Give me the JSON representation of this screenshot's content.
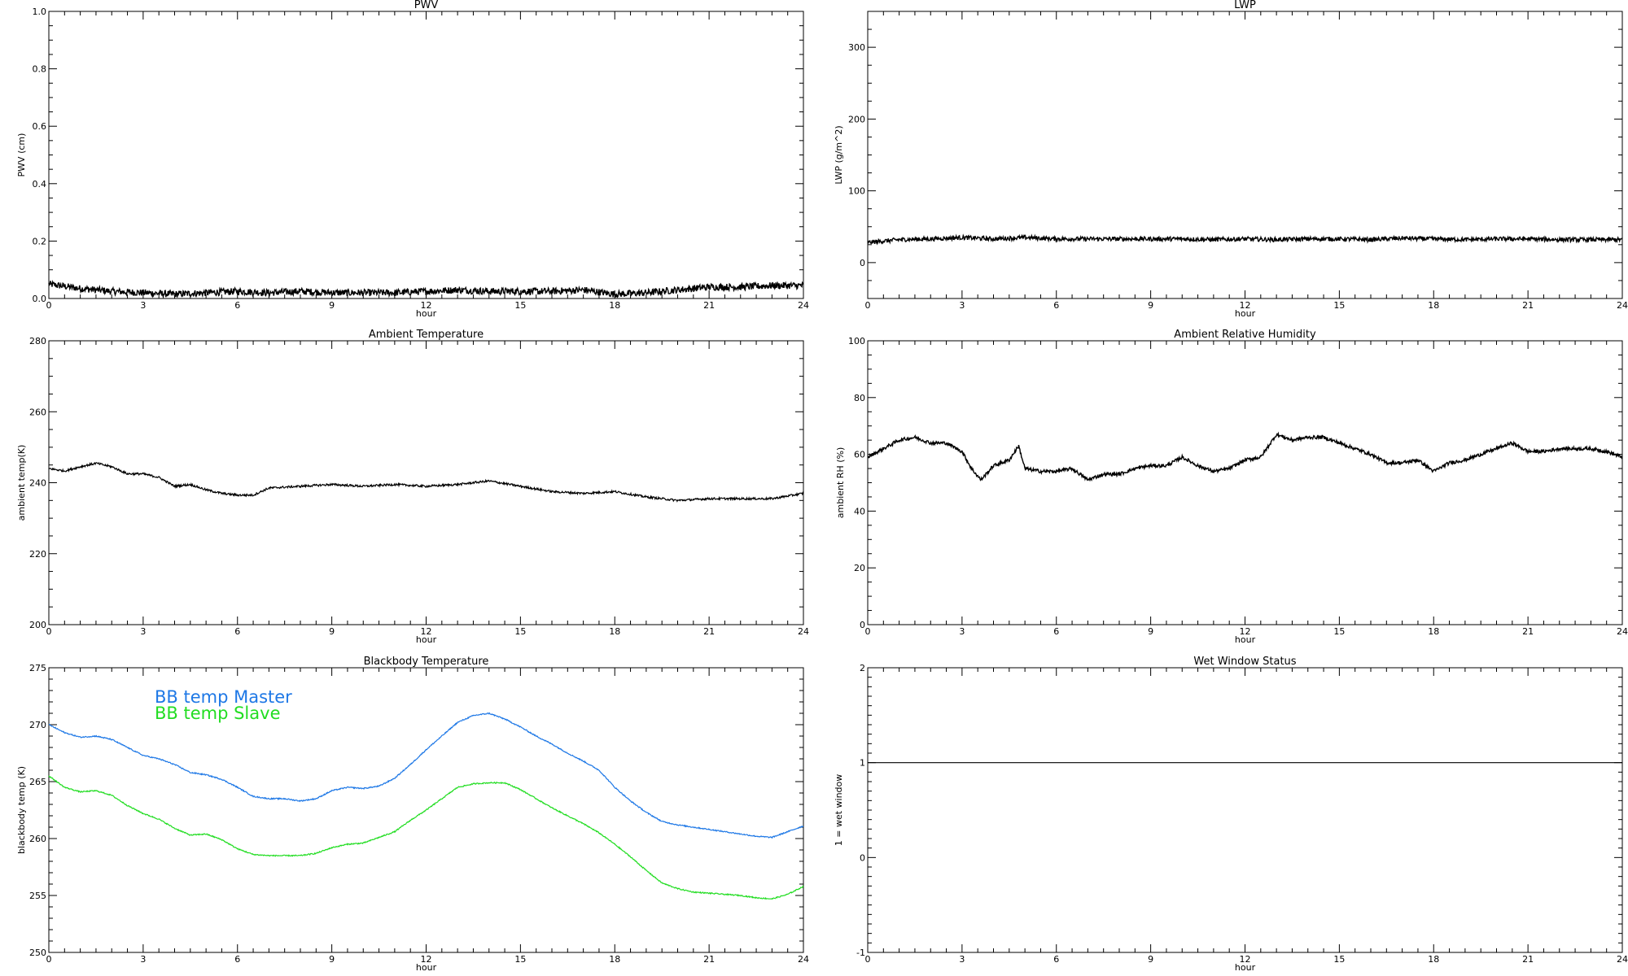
{
  "chart_data": [
    {
      "id": "pwv",
      "type": "line",
      "title": "PWV",
      "xlabel": "hour",
      "ylabel": "PWV (cm)",
      "xlim": [
        0,
        24
      ],
      "ylim": [
        0.0,
        1.0
      ],
      "xticks": [
        0,
        3,
        6,
        9,
        12,
        15,
        18,
        21,
        24
      ],
      "yticks": [
        "0.0",
        "0.2",
        "0.4",
        "0.6",
        "0.8",
        "1.0"
      ],
      "grid": false,
      "series": [
        {
          "color": "#000000",
          "noise": 0.012,
          "x": [
            0,
            1,
            2,
            3,
            4,
            5,
            6,
            7,
            8,
            9,
            10,
            11,
            12,
            13,
            14,
            15,
            16,
            17,
            18,
            19,
            20,
            21,
            22,
            23,
            24
          ],
          "y": [
            0.05,
            0.035,
            0.025,
            0.02,
            0.015,
            0.02,
            0.025,
            0.02,
            0.025,
            0.02,
            0.02,
            0.02,
            0.025,
            0.03,
            0.025,
            0.025,
            0.025,
            0.03,
            0.015,
            0.02,
            0.03,
            0.04,
            0.04,
            0.045,
            0.045
          ]
        }
      ]
    },
    {
      "id": "lwp",
      "type": "line",
      "title": "LWP",
      "xlabel": "hour",
      "ylabel": "LWP (g/m^2)",
      "xlim": [
        0,
        24
      ],
      "ylim": [
        -50,
        350
      ],
      "xticks": [
        0,
        3,
        6,
        9,
        12,
        15,
        18,
        21,
        24
      ],
      "yticks": [
        "0",
        "100",
        "200",
        "300"
      ],
      "grid": false,
      "series": [
        {
          "color": "#000000",
          "noise": 3,
          "x": [
            0,
            1,
            2,
            3,
            4,
            5,
            6,
            7,
            8,
            9,
            10,
            11,
            12,
            13,
            14,
            15,
            16,
            17,
            18,
            19,
            20,
            21,
            22,
            23,
            24
          ],
          "y": [
            28,
            32,
            33,
            35,
            33,
            35,
            33,
            33,
            33,
            33,
            33,
            32,
            33,
            32,
            33,
            33,
            32,
            34,
            33,
            32,
            33,
            33,
            32,
            32,
            32
          ]
        }
      ]
    },
    {
      "id": "ambient_temp",
      "type": "line",
      "title": "Ambient Temperature",
      "xlabel": "hour",
      "ylabel": "ambient temp(K)",
      "xlim": [
        0,
        24
      ],
      "ylim": [
        200,
        280
      ],
      "xticks": [
        0,
        3,
        6,
        9,
        12,
        15,
        18,
        21,
        24
      ],
      "yticks": [
        "200",
        "220",
        "240",
        "260",
        "280"
      ],
      "grid": false,
      "series": [
        {
          "color": "#000000",
          "noise": 0.3,
          "x": [
            0,
            0.5,
            1,
            1.5,
            2,
            2.5,
            3,
            3.5,
            4,
            4.5,
            5,
            5.5,
            6,
            6.5,
            7,
            8,
            9,
            10,
            11,
            12,
            13,
            14,
            15,
            16,
            17,
            18,
            19,
            20,
            21,
            22,
            23,
            24
          ],
          "y": [
            244,
            243.3,
            244.5,
            245.5,
            244.5,
            242.5,
            242.5,
            241.5,
            239,
            239.5,
            238,
            237,
            236.5,
            236.5,
            238.5,
            239,
            239.5,
            239,
            239.5,
            239,
            239.5,
            240.5,
            239,
            237.5,
            237,
            237.5,
            236,
            235,
            235.5,
            235.5,
            235.5,
            237
          ]
        }
      ]
    },
    {
      "id": "ambient_rh",
      "type": "line",
      "title": "Ambient Relative Humidity",
      "xlabel": "hour",
      "ylabel": "ambient RH (%)",
      "xlim": [
        0,
        24
      ],
      "ylim": [
        0,
        100
      ],
      "xticks": [
        0,
        3,
        6,
        9,
        12,
        15,
        18,
        21,
        24
      ],
      "yticks": [
        "0",
        "20",
        "40",
        "60",
        "80",
        "100"
      ],
      "grid": false,
      "series": [
        {
          "color": "#000000",
          "noise": 0.6,
          "x": [
            0,
            0.5,
            1,
            1.5,
            2,
            2.5,
            3,
            3.3,
            3.6,
            4,
            4.5,
            4.8,
            5,
            5.5,
            6,
            6.5,
            7,
            7.5,
            8,
            8.5,
            9,
            9.5,
            10,
            10.5,
            11,
            11.5,
            12,
            12.5,
            13,
            13.5,
            14,
            14.5,
            15,
            15.5,
            16,
            16.5,
            17,
            17.5,
            18,
            18.5,
            19,
            19.5,
            20,
            20.5,
            21,
            21.5,
            22,
            22.5,
            23,
            23.5,
            24
          ],
          "y": [
            59,
            62,
            65,
            66,
            64,
            64,
            61,
            55,
            51,
            56,
            58,
            63,
            55,
            54,
            54,
            55,
            51,
            53,
            53,
            55,
            56,
            56,
            59,
            56,
            54,
            55,
            58,
            59,
            67,
            65,
            66,
            66,
            64,
            62,
            60,
            57,
            57,
            58,
            54,
            57,
            58,
            60,
            62,
            64,
            61,
            61,
            62,
            62,
            62,
            61,
            59
          ]
        }
      ]
    },
    {
      "id": "bb_temp",
      "type": "line",
      "title": "Blackbody Temperature",
      "xlabel": "hour",
      "ylabel": "blackbody temp (K)",
      "xlim": [
        0,
        24
      ],
      "ylim": [
        250,
        275
      ],
      "xticks": [
        0,
        3,
        6,
        9,
        12,
        15,
        18,
        21,
        24
      ],
      "yticks": [
        "250",
        "255",
        "260",
        "265",
        "270",
        "275"
      ],
      "grid": false,
      "legend": "top-left",
      "series": [
        {
          "name": "BB temp Master",
          "color": "#1e78e6",
          "noise": 0.05,
          "x": [
            0,
            0.5,
            1,
            1.5,
            2,
            2.5,
            3,
            3.5,
            4,
            4.5,
            5,
            5.5,
            6,
            6.5,
            7,
            7.5,
            8,
            8.5,
            9,
            9.5,
            10,
            10.5,
            11,
            11.5,
            12,
            12.5,
            13,
            13.5,
            14,
            14.5,
            15,
            15.5,
            16,
            16.5,
            17,
            17.5,
            18,
            18.5,
            19,
            19.5,
            20,
            20.5,
            21,
            21.5,
            22,
            22.5,
            23,
            23.5,
            24
          ],
          "y": [
            270,
            269.3,
            268.9,
            269,
            268.7,
            268,
            267.3,
            267,
            266.5,
            265.8,
            265.6,
            265.2,
            264.5,
            263.7,
            263.5,
            263.5,
            263.3,
            263.5,
            264.2,
            264.5,
            264.4,
            264.6,
            265.3,
            266.5,
            267.8,
            269,
            270.2,
            270.8,
            271,
            270.5,
            269.8,
            269,
            268.3,
            267.5,
            266.8,
            266,
            264.5,
            263.3,
            262.3,
            261.5,
            261.2,
            261,
            260.8,
            260.6,
            260.4,
            260.2,
            260.1,
            260.6,
            261.1
          ]
        },
        {
          "name": "BB temp Slave",
          "color": "#22dd22",
          "noise": 0.05,
          "x": [
            0,
            0.5,
            1,
            1.5,
            2,
            2.5,
            3,
            3.5,
            4,
            4.5,
            5,
            5.5,
            6,
            6.5,
            7,
            7.5,
            8,
            8.5,
            9,
            9.5,
            10,
            10.5,
            11,
            11.5,
            12,
            12.5,
            13,
            13.5,
            14,
            14.5,
            15,
            15.5,
            16,
            16.5,
            17,
            17.5,
            18,
            18.5,
            19,
            19.5,
            20,
            20.5,
            21,
            21.5,
            22,
            22.5,
            23,
            23.5,
            24
          ],
          "y": [
            265.5,
            264.5,
            264.1,
            264.2,
            263.8,
            262.9,
            262.2,
            261.7,
            260.9,
            260.3,
            260.4,
            259.9,
            259.1,
            258.6,
            258.5,
            258.5,
            258.5,
            258.7,
            259.2,
            259.5,
            259.6,
            260.1,
            260.6,
            261.6,
            262.5,
            263.5,
            264.5,
            264.8,
            264.9,
            264.9,
            264.3,
            263.5,
            262.7,
            262,
            261.3,
            260.5,
            259.5,
            258.4,
            257.2,
            256.1,
            255.6,
            255.3,
            255.2,
            255.1,
            255,
            254.8,
            254.7,
            255.1,
            255.8
          ]
        }
      ]
    },
    {
      "id": "wet_window",
      "type": "line",
      "title": "Wet Window Status",
      "xlabel": "hour",
      "ylabel": "1 = wet window",
      "xlim": [
        0,
        24
      ],
      "ylim": [
        -1,
        2
      ],
      "xticks": [
        0,
        3,
        6,
        9,
        12,
        15,
        18,
        21,
        24
      ],
      "yticks": [
        "-1",
        "0",
        "1",
        "2"
      ],
      "grid": false,
      "series": [
        {
          "color": "#000000",
          "noise": 0,
          "x": [
            0,
            24
          ],
          "y": [
            1,
            1
          ]
        }
      ]
    }
  ]
}
